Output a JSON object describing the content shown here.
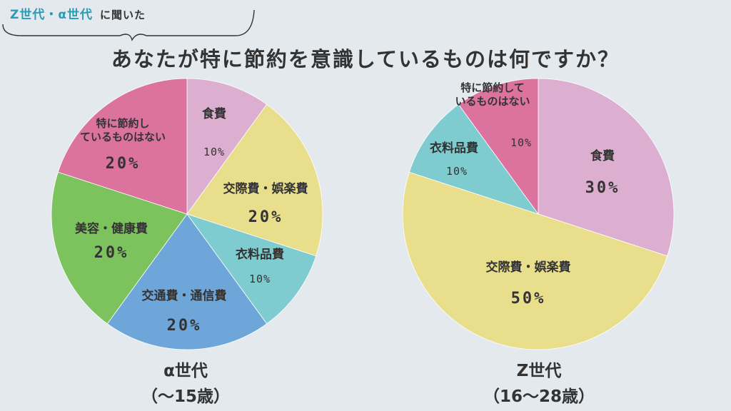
{
  "header": {
    "generations": "Z世代・α世代",
    "asked": "に聞いた",
    "title": "あなたが特に節約を意識しているものは何ですか？"
  },
  "chart_data": [
    {
      "type": "pie",
      "group": "α世代",
      "age": "（〜15歳）",
      "slices": [
        {
          "label": [
            "食費"
          ],
          "value": 10,
          "display": "10%",
          "color": "#dcaed0"
        },
        {
          "label": [
            "交際費・娯楽費"
          ],
          "value": 20,
          "display": "20%",
          "color": "#e8de8c"
        },
        {
          "label": [
            "衣料品費"
          ],
          "value": 10,
          "display": "10%",
          "color": "#7ecbd0"
        },
        {
          "label": [
            "交通費・通信費"
          ],
          "value": 20,
          "display": "20%",
          "color": "#6ea6da"
        },
        {
          "label": [
            "美容・健康費"
          ],
          "value": 20,
          "display": "20%",
          "color": "#7cc35e"
        },
        {
          "label": [
            "特に節約し",
            "ているものはない"
          ],
          "value": 20,
          "display": "20%",
          "color": "#db739e"
        }
      ]
    },
    {
      "type": "pie",
      "group": "Z世代",
      "age": "（16〜28歳）",
      "slices": [
        {
          "label": [
            "食費"
          ],
          "value": 30,
          "display": "30%",
          "color": "#dcaed0"
        },
        {
          "label": [
            "交際費・娯楽費"
          ],
          "value": 50,
          "display": "50%",
          "color": "#e8de8c"
        },
        {
          "label": [
            "衣料品費"
          ],
          "value": 10,
          "display": "10%",
          "color": "#7ecbd0"
        },
        {
          "label": [
            "特に節約して",
            "いるものはない"
          ],
          "value": 10,
          "display": "10%",
          "color": "#db739e"
        }
      ]
    }
  ]
}
